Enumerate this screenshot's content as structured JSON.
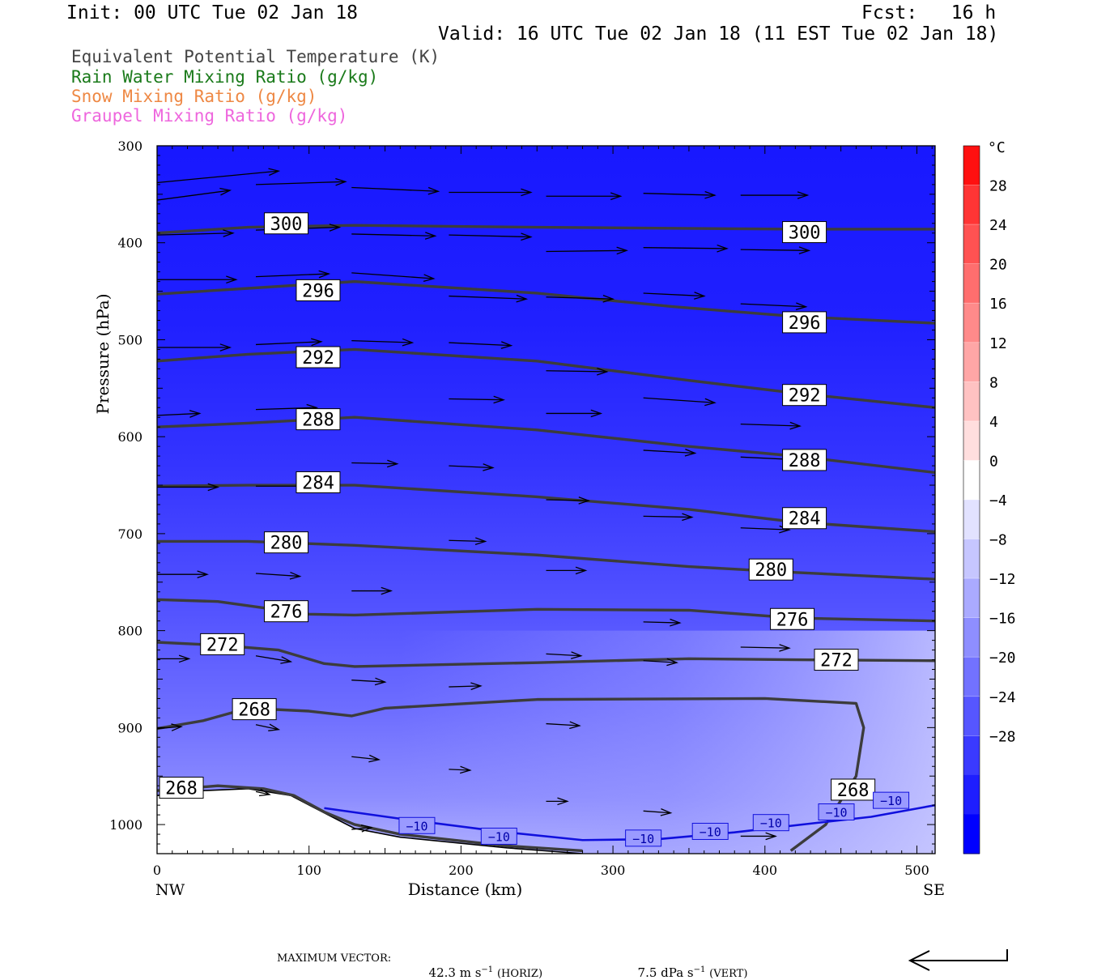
{
  "header": {
    "init": "Init: 00 UTC Tue 02 Jan 18",
    "fcst": "Fcst:   16 h",
    "valid": "Valid: 16 UTC Tue 02 Jan 18 (11 EST Tue 02 Jan 18)"
  },
  "legend": [
    {
      "label": "Equivalent Potential Temperature (K)",
      "color": "#444444"
    },
    {
      "label": "Rain Water Mixing Ratio (g/kg)",
      "color": "#1a7a1a"
    },
    {
      "label": "Snow Mixing Ratio (g/kg)",
      "color": "#ee8844"
    },
    {
      "label": "Graupel Mixing Ratio (g/kg)",
      "color": "#ee66dd"
    }
  ],
  "chart_data": {
    "type": "contour",
    "xlabel": "Distance (km)",
    "ylabel": "Pressure (hPa)",
    "xlim": [
      0,
      512
    ],
    "ylim": [
      1030,
      300
    ],
    "x_ticks": [
      0,
      100,
      200,
      300,
      400,
      500
    ],
    "y_ticks": [
      300,
      400,
      500,
      600,
      700,
      800,
      900,
      1000
    ],
    "x_end_labels": {
      "left": "NW",
      "right": "SE"
    },
    "colorbar": {
      "unit": "°C",
      "levels": [
        28,
        24,
        20,
        16,
        12,
        8,
        4,
        0,
        -4,
        -8,
        -12,
        -16,
        -20,
        -24,
        -28
      ],
      "colors": [
        "#ff1010",
        "#ff3535",
        "#ff5252",
        "#ff6e6e",
        "#ff8a8a",
        "#ffa6a6",
        "#ffc2c2",
        "#ffdede",
        "#ffffff",
        "#e2e2ff",
        "#c6c6ff",
        "#aaaaff",
        "#8e8eff",
        "#7272ff",
        "#5656ff",
        "#3a3aff",
        "#1e1eff",
        "#0000ff"
      ]
    },
    "theta_e_contours": [
      {
        "value": 300,
        "points": [
          [
            0,
            390
          ],
          [
            60,
            384
          ],
          [
            130,
            382
          ],
          [
            250,
            384
          ],
          [
            420,
            386
          ],
          [
            512,
            386
          ]
        ],
        "labels": [
          [
            85,
            380
          ],
          [
            426,
            389
          ]
        ]
      },
      {
        "value": 296,
        "points": [
          [
            0,
            453
          ],
          [
            60,
            447
          ],
          [
            130,
            440
          ],
          [
            250,
            452
          ],
          [
            340,
            466
          ],
          [
            420,
            476
          ],
          [
            512,
            483
          ]
        ],
        "labels": [
          [
            106,
            449
          ],
          [
            426,
            482
          ]
        ]
      },
      {
        "value": 292,
        "points": [
          [
            0,
            522
          ],
          [
            60,
            515
          ],
          [
            130,
            510
          ],
          [
            250,
            522
          ],
          [
            350,
            542
          ],
          [
            420,
            555
          ],
          [
            512,
            570
          ]
        ],
        "labels": [
          [
            106,
            518
          ],
          [
            426,
            557
          ]
        ]
      },
      {
        "value": 288,
        "points": [
          [
            0,
            590
          ],
          [
            60,
            586
          ],
          [
            130,
            580
          ],
          [
            250,
            593
          ],
          [
            350,
            610
          ],
          [
            420,
            620
          ],
          [
            512,
            637
          ]
        ],
        "labels": [
          [
            106,
            582
          ],
          [
            426,
            624
          ]
        ]
      },
      {
        "value": 284,
        "points": [
          [
            0,
            651
          ],
          [
            60,
            650
          ],
          [
            130,
            650
          ],
          [
            250,
            662
          ],
          [
            350,
            675
          ],
          [
            420,
            688
          ],
          [
            512,
            698
          ]
        ],
        "labels": [
          [
            106,
            647
          ],
          [
            426,
            684
          ]
        ]
      },
      {
        "value": 280,
        "points": [
          [
            0,
            708
          ],
          [
            60,
            708
          ],
          [
            130,
            712
          ],
          [
            250,
            722
          ],
          [
            350,
            734
          ],
          [
            420,
            740
          ],
          [
            512,
            747
          ]
        ],
        "labels": [
          [
            85,
            709
          ],
          [
            404,
            737
          ]
        ]
      },
      {
        "value": 276,
        "points": [
          [
            0,
            768
          ],
          [
            40,
            770
          ],
          [
            100,
            783
          ],
          [
            130,
            784
          ],
          [
            250,
            778
          ],
          [
            350,
            779
          ],
          [
            420,
            787
          ],
          [
            512,
            790
          ]
        ],
        "labels": [
          [
            85,
            780
          ],
          [
            418,
            788
          ]
        ]
      },
      {
        "value": 272,
        "points": [
          [
            0,
            812
          ],
          [
            40,
            815
          ],
          [
            80,
            820
          ],
          [
            110,
            834
          ],
          [
            130,
            837
          ],
          [
            250,
            833
          ],
          [
            350,
            829
          ],
          [
            420,
            830
          ],
          [
            512,
            831
          ]
        ],
        "labels": [
          [
            43,
            814
          ],
          [
            447,
            830
          ]
        ]
      },
      {
        "value": 268,
        "points": [
          [
            0,
            901
          ],
          [
            30,
            893
          ],
          [
            60,
            880
          ],
          [
            100,
            883
          ],
          [
            128,
            888
          ],
          [
            150,
            880
          ],
          [
            250,
            871
          ],
          [
            400,
            870
          ],
          [
            460,
            875
          ],
          [
            465,
            900
          ],
          [
            460,
            950
          ],
          [
            440,
            1000
          ],
          [
            417,
            1027
          ]
        ],
        "labels": [
          [
            64,
            881
          ],
          [
            458,
            964
          ]
        ]
      },
      {
        "value": 268,
        "points": [
          [
            0,
            965
          ],
          [
            40,
            960
          ],
          [
            70,
            963
          ],
          [
            90,
            970
          ],
          [
            110,
            987
          ],
          [
            130,
            1000
          ],
          [
            160,
            1010
          ],
          [
            230,
            1022
          ],
          [
            280,
            1027
          ]
        ],
        "labels": [
          [
            16,
            962
          ]
        ]
      }
    ],
    "temp_contour_minus10": {
      "value": -10,
      "points": [
        [
          110,
          983
        ],
        [
          160,
          994
        ],
        [
          230,
          1008
        ],
        [
          280,
          1016
        ],
        [
          330,
          1015
        ],
        [
          380,
          1008
        ],
        [
          430,
          999
        ],
        [
          470,
          992
        ],
        [
          512,
          980
        ]
      ],
      "labels": [
        [
          171,
          1001
        ],
        [
          225,
          1012
        ],
        [
          320,
          1014
        ],
        [
          364,
          1007
        ],
        [
          404,
          998
        ],
        [
          447,
          987
        ],
        [
          483,
          975
        ]
      ]
    },
    "terrain": [
      [
        0,
        970
      ],
      [
        30,
        965
      ],
      [
        60,
        963
      ],
      [
        88,
        970
      ],
      [
        110,
        988
      ],
      [
        130,
        1004
      ],
      [
        160,
        1013
      ],
      [
        230,
        1024
      ],
      [
        280,
        1030
      ]
    ],
    "vectors": [
      [
        0,
        338,
        80,
        326
      ],
      [
        0,
        356,
        48,
        346
      ],
      [
        0,
        392,
        50,
        390
      ],
      [
        0,
        438,
        52,
        438
      ],
      [
        0,
        508,
        48,
        508
      ],
      [
        0,
        578,
        28,
        576
      ],
      [
        0,
        652,
        40,
        652
      ],
      [
        0,
        742,
        33,
        742
      ],
      [
        0,
        829,
        21,
        829
      ],
      [
        0,
        901,
        16,
        899
      ],
      [
        65,
        340,
        124,
        337
      ],
      [
        65,
        387,
        120,
        384
      ],
      [
        65,
        435,
        113,
        432
      ],
      [
        65,
        505,
        108,
        502
      ],
      [
        65,
        572,
        105,
        570
      ],
      [
        65,
        651,
        101,
        651
      ],
      [
        65,
        741,
        94,
        744
      ],
      [
        65,
        826,
        88,
        832
      ],
      [
        65,
        897,
        80,
        902
      ],
      [
        65,
        966,
        74,
        969
      ],
      [
        128,
        343,
        185,
        347
      ],
      [
        128,
        391,
        183,
        393
      ],
      [
        128,
        431,
        182,
        437
      ],
      [
        128,
        501,
        168,
        503
      ],
      [
        128,
        627,
        158,
        628
      ],
      [
        128,
        759,
        154,
        759
      ],
      [
        128,
        851,
        150,
        853
      ],
      [
        128,
        930,
        146,
        933
      ],
      [
        128,
        1005,
        141,
        1003
      ],
      [
        192,
        348,
        246,
        348
      ],
      [
        192,
        392,
        246,
        394
      ],
      [
        192,
        455,
        243,
        458
      ],
      [
        192,
        503,
        233,
        506
      ],
      [
        192,
        561,
        228,
        562
      ],
      [
        192,
        630,
        221,
        632
      ],
      [
        192,
        707,
        216,
        708
      ],
      [
        192,
        858,
        213,
        857
      ],
      [
        192,
        943,
        206,
        944
      ],
      [
        256,
        352,
        305,
        352
      ],
      [
        256,
        409,
        309,
        408
      ],
      [
        256,
        456,
        300,
        458
      ],
      [
        256,
        532,
        296,
        533
      ],
      [
        256,
        576,
        292,
        576
      ],
      [
        256,
        665,
        284,
        666
      ],
      [
        256,
        738,
        282,
        738
      ],
      [
        256,
        824,
        279,
        826
      ],
      [
        256,
        896,
        278,
        898
      ],
      [
        256,
        976,
        270,
        976
      ],
      [
        320,
        349,
        367,
        351
      ],
      [
        320,
        405,
        375,
        406
      ],
      [
        320,
        452,
        360,
        455
      ],
      [
        320,
        560,
        367,
        565
      ],
      [
        320,
        614,
        354,
        617
      ],
      [
        320,
        682,
        352,
        683
      ],
      [
        320,
        791,
        344,
        792
      ],
      [
        320,
        831,
        342,
        833
      ],
      [
        320,
        986,
        338,
        988
      ],
      [
        384,
        351,
        428,
        351
      ],
      [
        384,
        407,
        429,
        408
      ],
      [
        384,
        463,
        427,
        466
      ],
      [
        384,
        587,
        423,
        589
      ],
      [
        384,
        621,
        424,
        624
      ],
      [
        384,
        694,
        416,
        696
      ],
      [
        384,
        817,
        416,
        818
      ],
      [
        384,
        1012,
        407,
        1012
      ]
    ]
  },
  "footer": {
    "max_vector_label": "MAXIMUM VECTOR:",
    "horiz_value": "42.3 m s",
    "horiz_unit": "(HORIZ)",
    "vert_value": "7.5 dPa s",
    "vert_unit": "(VERT)",
    "exponent": "−1"
  }
}
